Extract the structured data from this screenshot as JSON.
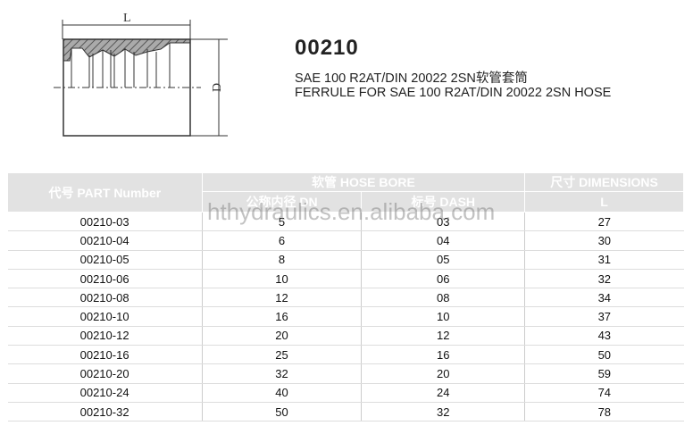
{
  "product": {
    "code": "00210",
    "subtitle_cn": "SAE 100 R2AT/DIN 20022  2SN软管套筒",
    "subtitle_en": "FERRULE FOR SAE 100 R2AT/DIN 20022  2SN HOSE",
    "drawing_labels": {
      "length": "L",
      "diameter": "D"
    }
  },
  "watermark": "hthydraulics.en.alibaba.com",
  "table": {
    "headers": {
      "part": "代号 PART Number",
      "hose_bore": "软管 HOSE BORE",
      "dimensions": "尺寸 DIMENSIONS",
      "dn": "公称内径 DN",
      "dash": "标号 DASH",
      "l": "L"
    },
    "rows": [
      [
        "00210-03",
        "5",
        "03",
        "27"
      ],
      [
        "00210-04",
        "6",
        "04",
        "30"
      ],
      [
        "00210-05",
        "8",
        "05",
        "31"
      ],
      [
        "00210-06",
        "10",
        "06",
        "32"
      ],
      [
        "00210-08",
        "12",
        "08",
        "34"
      ],
      [
        "00210-10",
        "16",
        "10",
        "37"
      ],
      [
        "00210-12",
        "20",
        "12",
        "43"
      ],
      [
        "00210-16",
        "25",
        "16",
        "50"
      ],
      [
        "00210-20",
        "32",
        "20",
        "59"
      ],
      [
        "00210-24",
        "40",
        "24",
        "74"
      ],
      [
        "00210-32",
        "50",
        "32",
        "78"
      ]
    ]
  }
}
